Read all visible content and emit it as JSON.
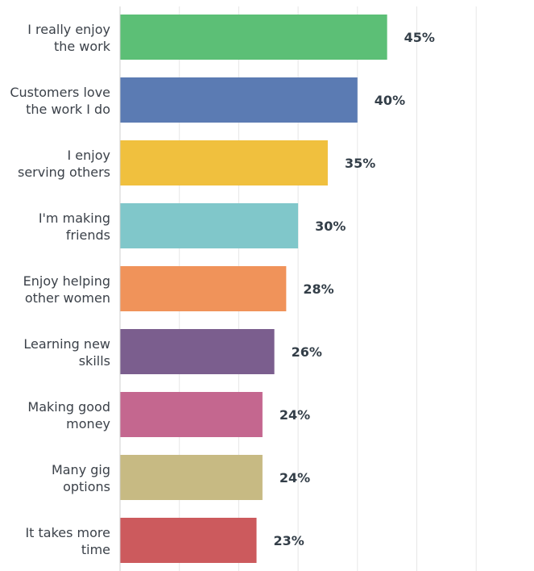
{
  "chart_data": {
    "type": "bar",
    "orientation": "horizontal",
    "categories": [
      "I really enjoy the work",
      "Customers love the work I do",
      "I enjoy serving others",
      "I'm making friends",
      "Enjoy helping other women",
      "Learning new skills",
      "Making good money",
      "Many gig options",
      "It takes more time"
    ],
    "category_lines": [
      [
        "I really enjoy",
        "the work"
      ],
      [
        "Customers love",
        "the work I do"
      ],
      [
        "I enjoy",
        "serving others"
      ],
      [
        "I'm making",
        "friends"
      ],
      [
        "Enjoy helping",
        "other women"
      ],
      [
        "Learning new",
        "skills"
      ],
      [
        "Making good",
        "money"
      ],
      [
        "Many gig",
        "options"
      ],
      [
        "It takes more",
        "time"
      ]
    ],
    "values": [
      45,
      40,
      35,
      30,
      28,
      26,
      24,
      24,
      23
    ],
    "value_labels": [
      "45%",
      "40%",
      "35%",
      "30%",
      "28%",
      "26%",
      "24%",
      "24%",
      "23%"
    ],
    "colors": [
      "#5cbf76",
      "#5b7bb3",
      "#f0c03e",
      "#80c7ca",
      "#f0935a",
      "#7b5e8e",
      "#c4678f",
      "#c7ba83",
      "#cc5a5d"
    ],
    "xlim": [
      0,
      70
    ],
    "grid": true,
    "legend": "none",
    "title": "",
    "xlabel": "",
    "ylabel": ""
  }
}
